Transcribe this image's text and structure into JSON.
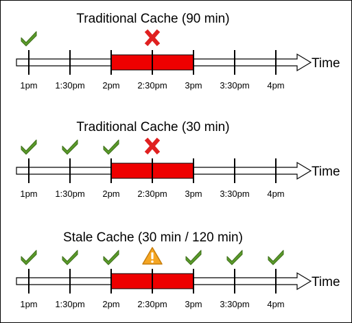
{
  "axis_label": "Time",
  "tick_labels": [
    "1pm",
    "1:30pm",
    "2pm",
    "2:30pm",
    "3pm",
    "3:30pm",
    "4pm"
  ],
  "colors": {
    "outage": "#ee0000",
    "success": "#5a9a2a",
    "failure": "#e02020",
    "warning": "#f5a623"
  },
  "timelines": [
    {
      "title": "Traditional Cache (90 min)",
      "outage_ticks": [
        2,
        4
      ],
      "markers": [
        {
          "tick": 0,
          "icon": "check-icon"
        },
        {
          "tick": 3,
          "icon": "x-icon"
        }
      ]
    },
    {
      "title": "Traditional Cache (30 min)",
      "outage_ticks": [
        2,
        4
      ],
      "markers": [
        {
          "tick": 0,
          "icon": "check-icon"
        },
        {
          "tick": 1,
          "icon": "check-icon"
        },
        {
          "tick": 2,
          "icon": "check-icon"
        },
        {
          "tick": 3,
          "icon": "x-icon"
        }
      ]
    },
    {
      "title": "Stale Cache (30 min / 120 min)",
      "outage_ticks": [
        2,
        4
      ],
      "markers": [
        {
          "tick": 0,
          "icon": "check-icon"
        },
        {
          "tick": 1,
          "icon": "check-icon"
        },
        {
          "tick": 2,
          "icon": "check-icon"
        },
        {
          "tick": 3,
          "icon": "warning-icon"
        },
        {
          "tick": 4,
          "icon": "check-icon"
        },
        {
          "tick": 5,
          "icon": "check-icon"
        },
        {
          "tick": 6,
          "icon": "check-icon"
        }
      ]
    }
  ]
}
